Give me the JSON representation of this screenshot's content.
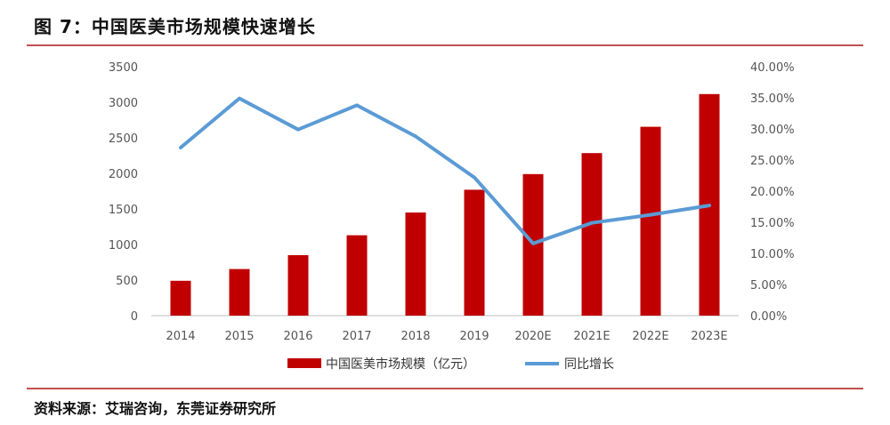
{
  "figure": {
    "title": "图 7：中国医美市场规模快速增长",
    "source": "资料来源：艾瑞咨询，东莞证券研究所"
  },
  "colors": {
    "bar": "#c00000",
    "line": "#5b9bd5",
    "rule": "#c0504d",
    "axis": "#bfbfbf"
  },
  "chart_data": {
    "type": "bar",
    "categories": [
      "2014",
      "2015",
      "2016",
      "2017",
      "2018",
      "2019",
      "2020E",
      "2021E",
      "2022E",
      "2023E"
    ],
    "series": [
      {
        "name": "中国医美市场规模（亿元）",
        "type": "bar",
        "axis": "left",
        "values": [
          490,
          655,
          850,
          1130,
          1450,
          1770,
          1990,
          2285,
          2655,
          3115
        ]
      },
      {
        "name": "同比增长",
        "type": "line",
        "axis": "right",
        "values": [
          0.27,
          0.349,
          0.299,
          0.338,
          0.288,
          0.222,
          0.116,
          0.149,
          0.162,
          0.177
        ]
      }
    ],
    "y_left": {
      "min": 0,
      "max": 3500,
      "ticks": [
        "0",
        "500",
        "1000",
        "1500",
        "2000",
        "2500",
        "3000",
        "3500"
      ]
    },
    "y_right": {
      "min": 0,
      "max": 0.4,
      "ticks": [
        "0.00%",
        "5.00%",
        "10.00%",
        "15.00%",
        "20.00%",
        "25.00%",
        "30.00%",
        "35.00%",
        "40.00%"
      ]
    },
    "grid": false,
    "legend_position": "bottom"
  }
}
